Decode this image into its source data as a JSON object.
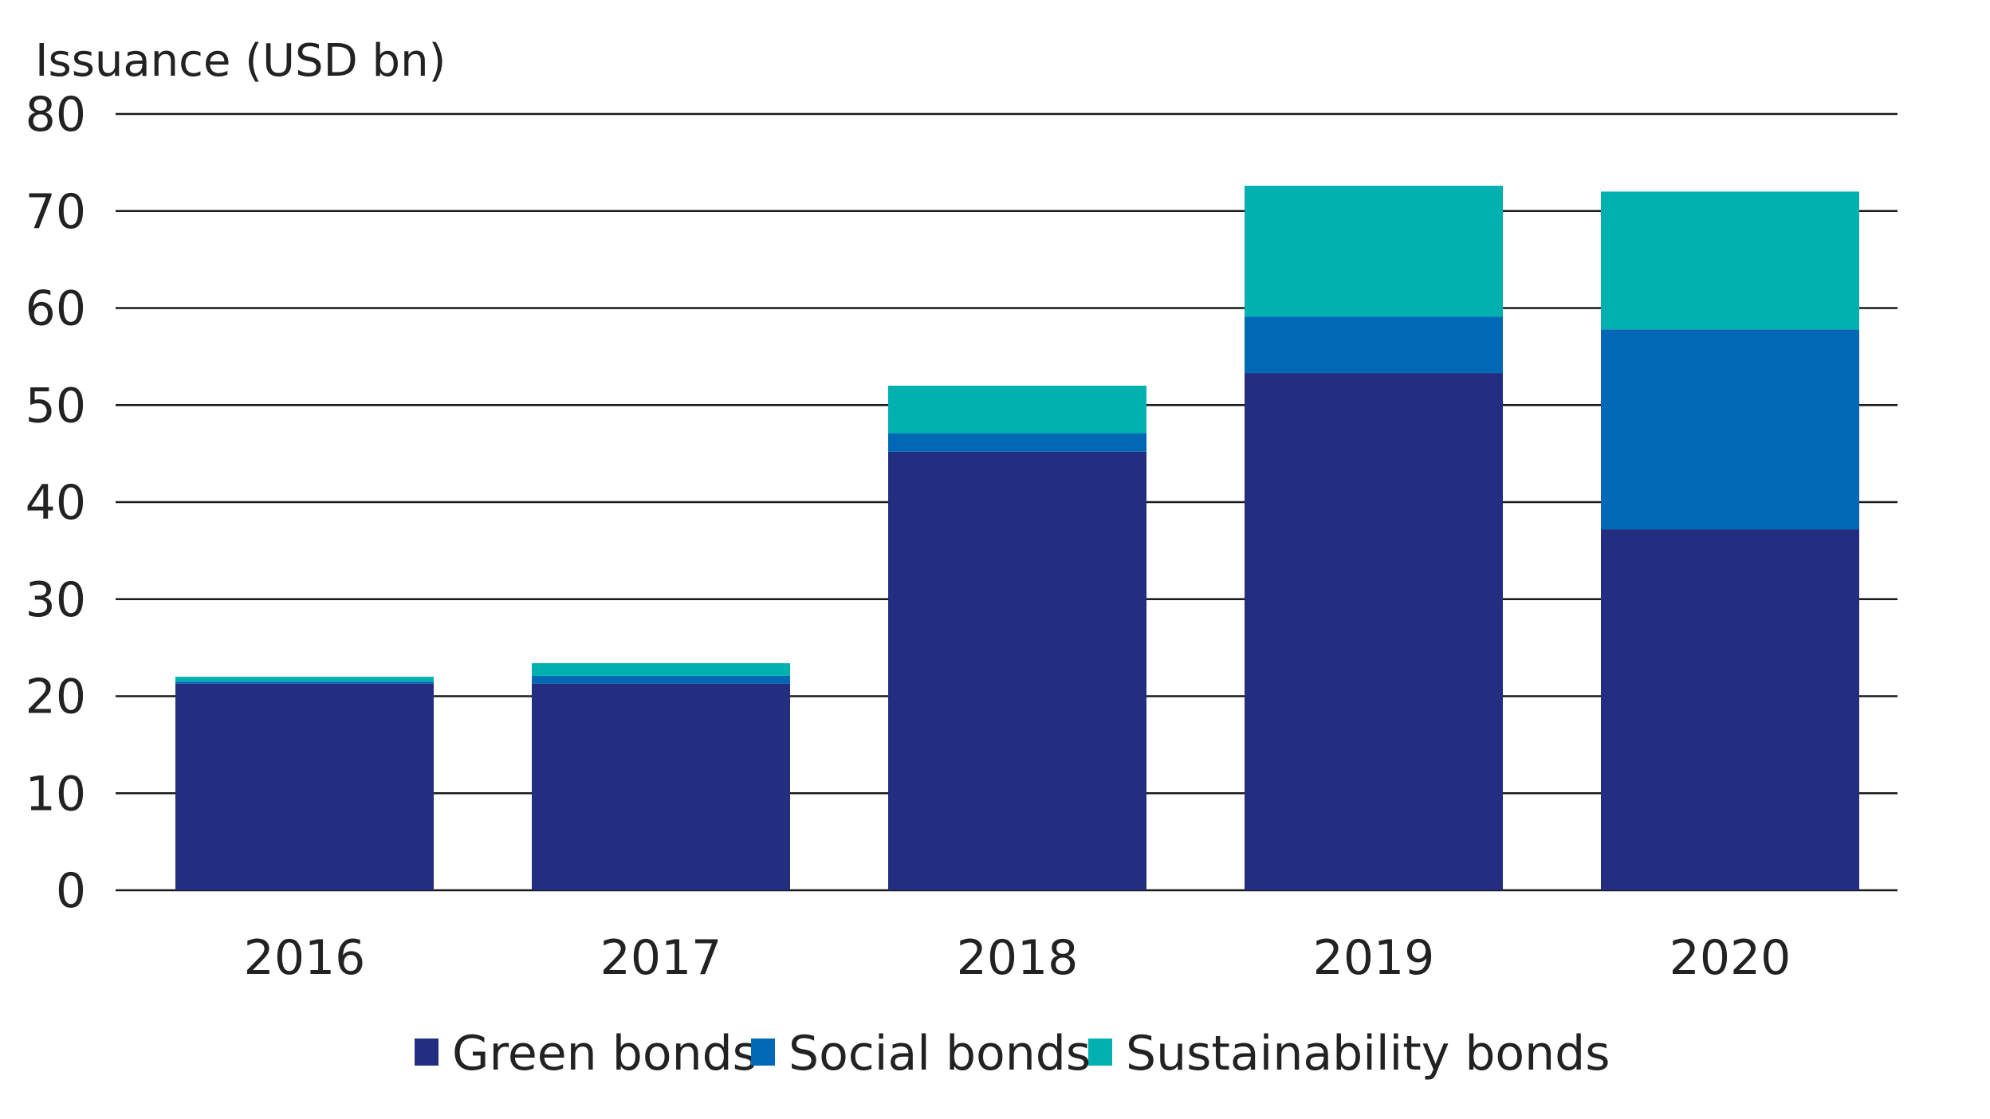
{
  "chart_data": {
    "type": "bar",
    "stacked": true,
    "ylabel": "Issuance (USD bn)",
    "ylim": [
      0,
      80
    ],
    "yticks": [
      0,
      10,
      20,
      30,
      40,
      50,
      60,
      70,
      80
    ],
    "grid": true,
    "legend_position": "bottom",
    "categories": [
      "2016",
      "2017",
      "2018",
      "2019",
      "2020"
    ],
    "series": [
      {
        "name": "Green bonds",
        "color": "#232e80",
        "values": [
          21.3,
          21.3,
          45.2,
          53.3,
          37.2
        ]
      },
      {
        "name": "Social bonds",
        "color": "#0068b4",
        "values": [
          0.2,
          0.8,
          1.9,
          5.8,
          20.6
        ]
      },
      {
        "name": "Sustainability bonds",
        "color": "#00b1b0",
        "values": [
          0.5,
          1.3,
          4.9,
          13.5,
          14.2
        ]
      }
    ]
  }
}
